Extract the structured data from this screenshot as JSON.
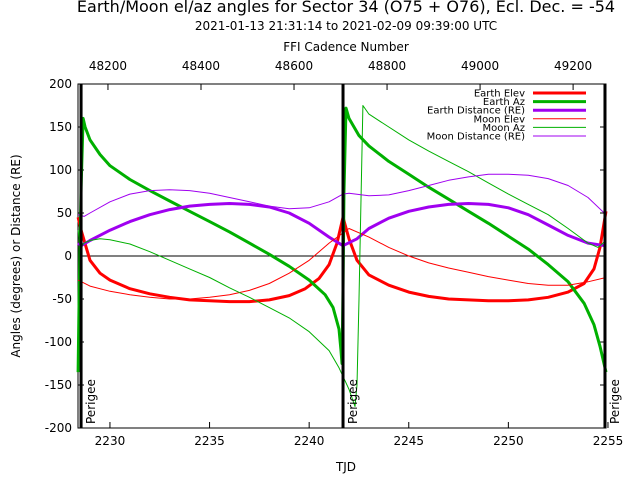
{
  "title": "Earth/Moon el/az angles for Sector 34 (O75 + O76), Ecl. Dec. = -54",
  "subtitle": "2021-01-13 21:31:14 to 2021-02-09 09:39:00 UTC",
  "top_axis_label": "FFI Cadence Number",
  "chart_data": {
    "type": "line",
    "title": "Earth/Moon el/az angles for Sector 34 (O75 + O76), Ecl. Dec. = -54",
    "xlabel": "TJD",
    "ylabel": "Angles (degrees) or Distance (RE)",
    "x2label": "FFI Cadence Number",
    "xlim": [
      2228.3958,
      2254.9014
    ],
    "ylim": [
      -200,
      200
    ],
    "x_ticks": [
      "2230",
      "2235",
      "2240",
      "2245",
      "2250",
      "2255"
    ],
    "y_ticks": [
      "200",
      "150",
      "100",
      "50",
      "0",
      "-50",
      "-100",
      "-150",
      "-200"
    ],
    "x2_ticks": [
      "48200",
      "48400",
      "48600",
      "48800",
      "49000",
      "49200"
    ],
    "x2_tick_positions_tjd": [
      2229.9,
      2234.57,
      2239.24,
      2243.91,
      2248.58,
      2253.25
    ],
    "legend_position": "top-right",
    "perigee_label": "Perigee",
    "perigees": [
      2228.55,
      2241.7,
      2254.85
    ],
    "series": [
      {
        "name": "Earth Elev",
        "color": "#ff0000",
        "width": 3,
        "x": [
          2228.4,
          2228.55,
          2229.0,
          2229.5,
          2230.0,
          2231.0,
          2232.0,
          2233.0,
          2234.0,
          2235.0,
          2236.0,
          2237.0,
          2238.0,
          2239.0,
          2239.8,
          2240.5,
          2241.0,
          2241.4,
          2241.7,
          2242.0,
          2242.4,
          2243.0,
          2244.0,
          2245.0,
          2246.0,
          2247.0,
          2248.0,
          2249.0,
          2250.0,
          2251.0,
          2252.0,
          2253.0,
          2253.8,
          2254.3,
          2254.6,
          2254.9
        ],
        "values": [
          45,
          30,
          -5,
          -20,
          -28,
          -38,
          -44,
          -48,
          -51,
          -52,
          -53,
          -53,
          -51,
          -46,
          -38,
          -26,
          -10,
          15,
          45,
          20,
          -5,
          -22,
          -34,
          -42,
          -47,
          -50,
          -51,
          -52,
          -52,
          -51,
          -48,
          -42,
          -32,
          -15,
          10,
          52
        ]
      },
      {
        "name": "Earth Az",
        "color": "#00b000",
        "width": 3,
        "x": [
          2228.4,
          2228.45,
          2228.55,
          2228.65,
          2228.75,
          2229.0,
          2229.5,
          2230.0,
          2231.0,
          2232.0,
          2233.0,
          2234.0,
          2235.0,
          2236.0,
          2237.0,
          2238.0,
          2239.0,
          2240.0,
          2240.8,
          2241.2,
          2241.5,
          2241.6,
          2241.65,
          2241.7,
          2241.75,
          2241.85,
          2242.0,
          2242.5,
          2243.0,
          2244.0,
          2245.0,
          2246.0,
          2247.0,
          2248.0,
          2249.0,
          2250.0,
          2251.0,
          2252.0,
          2253.0,
          2253.8,
          2254.3,
          2254.6,
          2254.9
        ],
        "values": [
          -135,
          -50,
          80,
          160,
          150,
          135,
          118,
          105,
          89,
          76,
          64,
          52,
          40,
          28,
          15,
          2,
          -12,
          -28,
          -45,
          -60,
          -85,
          -110,
          -125,
          -40,
          75,
          172,
          160,
          140,
          128,
          110,
          95,
          80,
          66,
          52,
          38,
          23,
          8,
          -10,
          -30,
          -55,
          -80,
          -105,
          -135
        ]
      },
      {
        "name": "Earth Distance (RE)",
        "color": "#a000f0",
        "width": 3,
        "x": [
          2228.4,
          2228.55,
          2229.0,
          2230.0,
          2231.0,
          2232.0,
          2233.0,
          2234.0,
          2235.0,
          2236.0,
          2237.0,
          2238.0,
          2239.0,
          2240.0,
          2241.0,
          2241.7,
          2242.4,
          2243.0,
          2244.0,
          2245.0,
          2246.0,
          2247.0,
          2248.0,
          2249.0,
          2250.0,
          2251.0,
          2252.0,
          2253.0,
          2254.0,
          2254.85
        ],
        "values": [
          15,
          12,
          18,
          30,
          40,
          48,
          54,
          58,
          60,
          61,
          60,
          57,
          50,
          38,
          22,
          12,
          20,
          32,
          44,
          52,
          57,
          60,
          61,
          60,
          56,
          48,
          36,
          24,
          15,
          12
        ]
      },
      {
        "name": "Moon Elev",
        "color": "#ff0000",
        "width": 1,
        "x": [
          2228.4,
          2229.0,
          2230.0,
          2231.0,
          2232.0,
          2233.0,
          2234.0,
          2235.0,
          2236.0,
          2237.0,
          2238.0,
          2239.0,
          2240.0,
          2241.0,
          2242.0,
          2243.0,
          2244.0,
          2245.0,
          2246.0,
          2247.0,
          2248.0,
          2249.0,
          2250.0,
          2251.0,
          2252.0,
          2253.0,
          2254.0,
          2254.9
        ],
        "values": [
          -28,
          -35,
          -41,
          -45,
          -48,
          -50,
          -50,
          -48,
          -45,
          -40,
          -32,
          -20,
          -5,
          15,
          32,
          22,
          10,
          0,
          -8,
          -14,
          -19,
          -24,
          -28,
          -32,
          -34,
          -34,
          -30,
          -25
        ]
      },
      {
        "name": "Moon Az",
        "color": "#00b000",
        "width": 1,
        "x": [
          2228.4,
          2228.5,
          2228.7,
          2229.0,
          2229.5,
          2230.0,
          2231.0,
          2232.0,
          2233.0,
          2234.0,
          2235.0,
          2236.0,
          2237.0,
          2238.0,
          2239.0,
          2240.0,
          2241.0,
          2241.5,
          2242.0,
          2242.3,
          2242.4,
          2242.5,
          2242.7,
          2243.0,
          2244.0,
          2245.0,
          2246.0,
          2247.0,
          2248.0,
          2249.0,
          2250.0,
          2251.0,
          2252.0,
          2253.0,
          2254.0,
          2254.5,
          2254.9
        ],
        "values": [
          30,
          10,
          15,
          18,
          20,
          19,
          14,
          5,
          -5,
          -15,
          -25,
          -37,
          -48,
          -60,
          -72,
          -88,
          -110,
          -130,
          -155,
          -175,
          -150,
          -50,
          175,
          165,
          150,
          135,
          122,
          110,
          98,
          85,
          72,
          60,
          48,
          32,
          15,
          10,
          18
        ]
      },
      {
        "name": "Moon Distance (RE)",
        "color": "#a000f0",
        "width": 1,
        "x": [
          2228.4,
          2228.7,
          2229.0,
          2230.0,
          2231.0,
          2232.0,
          2233.0,
          2234.0,
          2235.0,
          2236.0,
          2237.0,
          2238.0,
          2239.0,
          2240.0,
          2241.0,
          2241.7,
          2242.0,
          2243.0,
          2244.0,
          2245.0,
          2246.0,
          2247.0,
          2248.0,
          2249.0,
          2250.0,
          2251.0,
          2252.0,
          2253.0,
          2254.0,
          2254.9
        ],
        "values": [
          48,
          46,
          50,
          63,
          72,
          76,
          77,
          76,
          73,
          68,
          63,
          58,
          55,
          56,
          63,
          72,
          73,
          70,
          71,
          76,
          82,
          88,
          92,
          95,
          95,
          94,
          90,
          82,
          68,
          48
        ]
      }
    ]
  }
}
